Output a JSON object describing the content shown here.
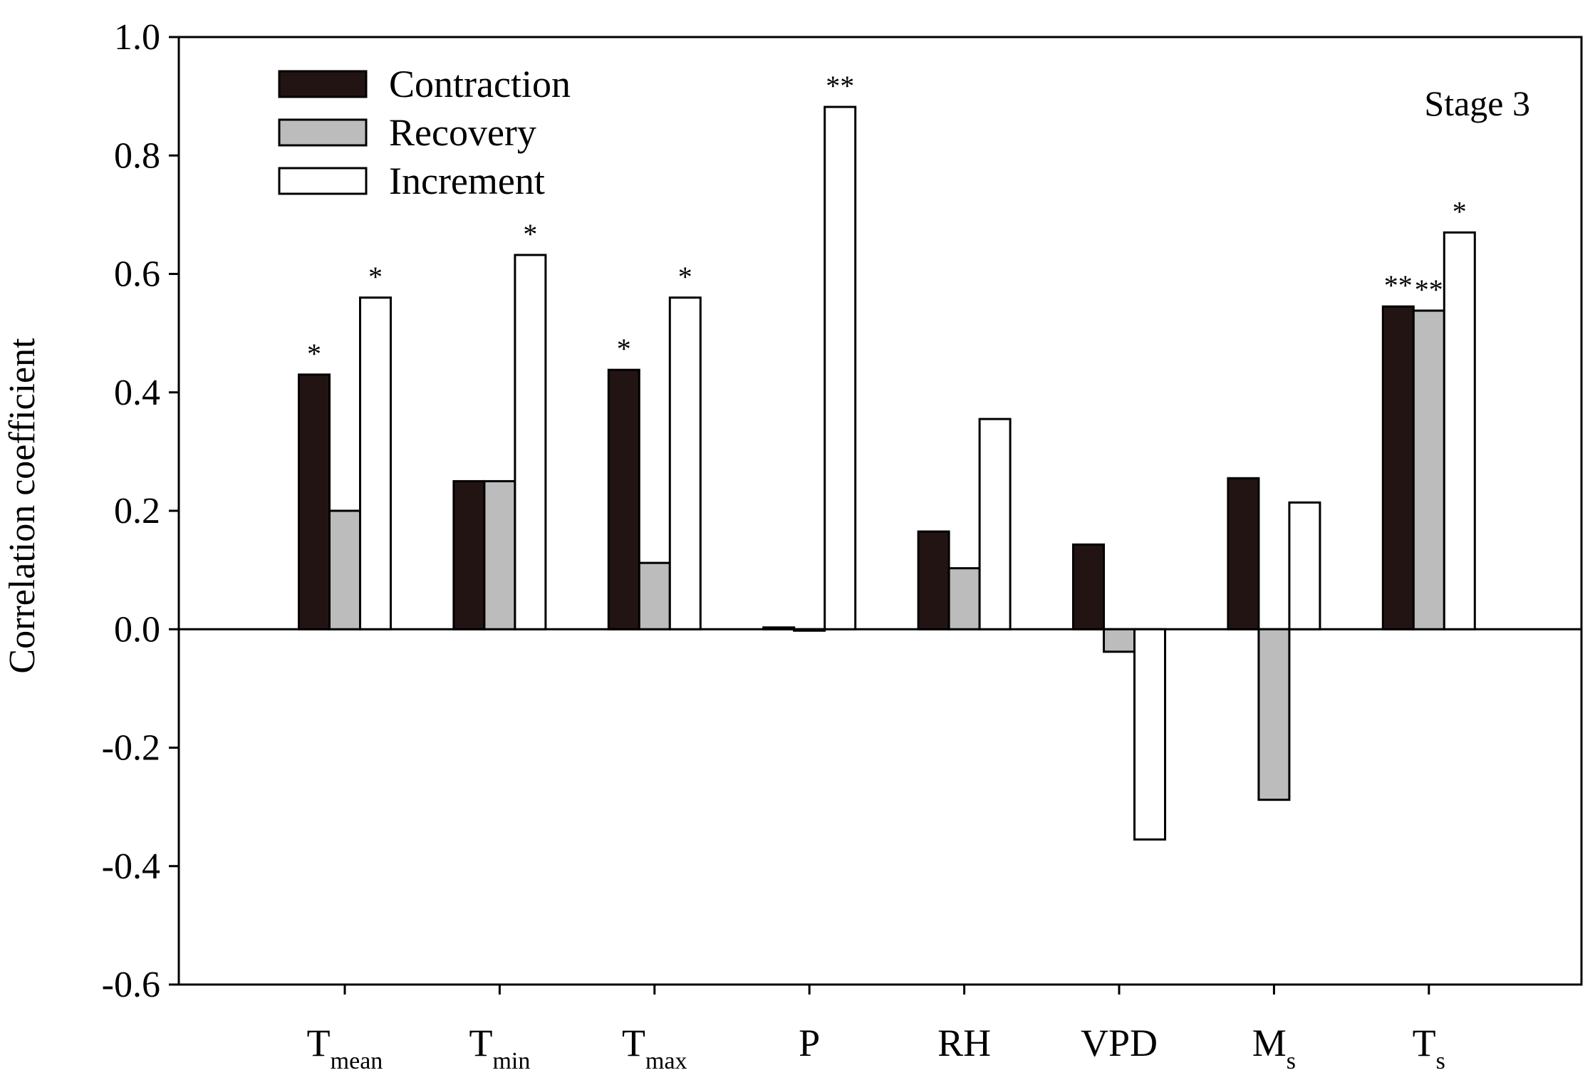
{
  "chart_data": {
    "type": "bar",
    "title": "",
    "panel_label": "Stage 3",
    "xlabel": "",
    "ylabel": "Correlation coefficient",
    "ylim": [
      -0.6,
      1.0
    ],
    "yticks": [
      "1.0",
      "0.8",
      "0.6",
      "0.4",
      "0.2",
      "0.0",
      "-0.2",
      "-0.4",
      "-0.6"
    ],
    "ytick_values": [
      1.0,
      0.8,
      0.6,
      0.4,
      0.2,
      0.0,
      -0.2,
      -0.4,
      -0.6
    ],
    "grid": false,
    "legend_position": "top-left",
    "categories": [
      {
        "main": "T",
        "sub": "mean"
      },
      {
        "main": "T",
        "sub": "min"
      },
      {
        "main": "T",
        "sub": "max"
      },
      {
        "main": "P",
        "sub": ""
      },
      {
        "main": "RH",
        "sub": ""
      },
      {
        "main": "VPD",
        "sub": ""
      },
      {
        "main": "M",
        "sub": "s"
      },
      {
        "main": "T",
        "sub": "s"
      }
    ],
    "series": [
      {
        "name": "Contraction",
        "color": "#231414",
        "values": [
          0.43,
          0.25,
          0.438,
          0.003,
          0.165,
          0.143,
          0.255,
          0.545
        ],
        "significance": [
          "*",
          "",
          "*",
          "",
          "",
          "",
          "",
          "**"
        ]
      },
      {
        "name": "Recovery",
        "color": "#bcbcbc",
        "values": [
          0.2,
          0.25,
          0.112,
          0.0,
          0.103,
          -0.038,
          -0.288,
          0.538
        ],
        "significance": [
          "",
          "",
          "",
          "",
          "",
          "",
          "",
          "**"
        ]
      },
      {
        "name": "Increment",
        "color": "#ffffff",
        "values": [
          0.56,
          0.632,
          0.56,
          0.882,
          0.355,
          -0.355,
          0.214,
          0.67
        ],
        "significance": [
          "*",
          "*",
          "*",
          "**",
          "",
          "",
          "",
          "*"
        ]
      }
    ]
  }
}
